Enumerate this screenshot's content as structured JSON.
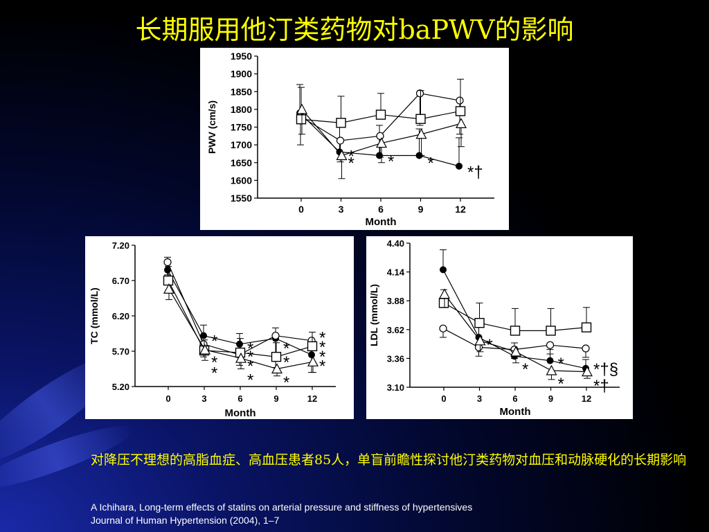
{
  "slide": {
    "title": "长期服用他汀类药物对baPWV的影响",
    "description": "对降压不理想的高脂血症、高血压患者85人，单盲前瞻性探讨他汀类药物对血压和动脉硬化的长期影响",
    "citation_line1": "A Ichihara, Long-term effects of statins on arterial pressure and stiffness of hypertensives",
    "citation_line2": "Journal of Human Hypertension (2004), 1–7"
  },
  "colors": {
    "background": "#000000",
    "title": "#ffff00",
    "citation": "#ffffff",
    "panel": "#ffffff",
    "ink": "#000000"
  },
  "chart_data": [
    {
      "type": "line",
      "xlabel": "Month",
      "ylabel": "PWV (cm/s)",
      "x": [
        0,
        3,
        6,
        9,
        12
      ],
      "ylim": [
        1550,
        1950
      ],
      "yticks": [
        "1950",
        "1900",
        "1850",
        "1800",
        "1750",
        "1700",
        "1650",
        "1600",
        "1550"
      ],
      "series": [
        {
          "marker": "filled-circle",
          "values": [
            1790,
            1680,
            1670,
            1670,
            1640
          ],
          "err": [
            80,
            70,
            85,
            75,
            80
          ]
        },
        {
          "marker": "open-circle",
          "values": [
            1780,
            1712,
            1725,
            1845,
            1825
          ],
          "err": [
            80,
            60,
            60,
            90,
            95
          ]
        },
        {
          "marker": "open-square",
          "values": [
            1772,
            1762,
            1785,
            1773,
            1795
          ],
          "err": [
            90,
            75,
            60,
            80,
            90
          ]
        },
        {
          "marker": "open-triangle",
          "values": [
            1800,
            1670,
            1705,
            1730,
            1760
          ],
          "err": [
            70,
            65,
            55,
            60,
            65
          ]
        }
      ],
      "annotations": [
        {
          "x": 3,
          "y": 1680,
          "text": "*"
        },
        {
          "x": 3,
          "y": 1660,
          "text": "*"
        },
        {
          "x": 6,
          "y": 1665,
          "text": "*"
        },
        {
          "x": 9,
          "y": 1660,
          "text": "*"
        },
        {
          "x": 12,
          "y": 1635,
          "text": "*†"
        }
      ]
    },
    {
      "type": "line",
      "xlabel": "Month",
      "ylabel": "TC (mmol/L)",
      "x": [
        0,
        3,
        6,
        9,
        12
      ],
      "ylim": [
        5.2,
        7.2
      ],
      "yticks": [
        "7.20",
        "6.70",
        "6.20",
        "5.70",
        "5.20"
      ],
      "series": [
        {
          "marker": "filled-circle",
          "values": [
            6.85,
            5.92,
            5.8,
            5.88,
            5.65
          ],
          "err": [
            0.18,
            0.15,
            0.15,
            0.15,
            0.15
          ]
        },
        {
          "marker": "open-circle",
          "values": [
            6.96,
            5.8,
            5.65,
            5.92,
            5.85
          ],
          "err": [
            0.18,
            0.18,
            0.15,
            0.45,
            0.45
          ]
        },
        {
          "marker": "open-square",
          "values": [
            6.7,
            5.71,
            5.68,
            5.62,
            5.77
          ],
          "err": [
            0.2,
            0.15,
            0.2,
            0.2,
            0.2
          ]
        },
        {
          "marker": "open-triangle",
          "values": [
            6.58,
            5.72,
            5.6,
            5.45,
            5.55
          ],
          "err": [
            0.15,
            0.15,
            0.15,
            0.1,
            0.15
          ]
        }
      ],
      "annotations": [
        {
          "x": 3,
          "y": 5.9,
          "text": "*"
        },
        {
          "x": 3,
          "y": 5.6,
          "text": "*"
        },
        {
          "x": 3,
          "y": 5.45,
          "text": "*"
        },
        {
          "x": 6,
          "y": 5.8,
          "text": "*"
        },
        {
          "x": 6,
          "y": 5.68,
          "text": "*"
        },
        {
          "x": 6,
          "y": 5.55,
          "text": "*"
        },
        {
          "x": 6,
          "y": 5.35,
          "text": "*"
        },
        {
          "x": 9,
          "y": 5.8,
          "text": "*"
        },
        {
          "x": 9,
          "y": 5.6,
          "text": "*"
        },
        {
          "x": 9,
          "y": 5.32,
          "text": "*"
        },
        {
          "x": 12,
          "y": 5.95,
          "text": "*"
        },
        {
          "x": 12,
          "y": 5.82,
          "text": "*"
        },
        {
          "x": 12,
          "y": 5.68,
          "text": "*"
        },
        {
          "x": 12,
          "y": 5.55,
          "text": "*"
        }
      ]
    },
    {
      "type": "line",
      "xlabel": "Month",
      "ylabel": "LDL (mmol/L)",
      "x": [
        0,
        3,
        6,
        9,
        12
      ],
      "ylim": [
        3.1,
        4.4
      ],
      "yticks": [
        "4.40",
        "4.14",
        "3.88",
        "3.62",
        "3.36",
        "3.10"
      ],
      "series": [
        {
          "marker": "filled-circle",
          "values": [
            4.16,
            3.55,
            3.38,
            3.34,
            3.27
          ],
          "err": [
            0.18,
            0.12,
            0.12,
            0.1,
            0.08
          ]
        },
        {
          "marker": "open-circle",
          "values": [
            3.63,
            3.46,
            3.44,
            3.48,
            3.45
          ],
          "err": [
            0.08,
            0.08,
            0.08,
            0.08,
            0.08
          ]
        },
        {
          "marker": "open-square",
          "values": [
            3.86,
            3.68,
            3.61,
            3.61,
            3.64
          ],
          "err": [
            0.12,
            0.18,
            0.2,
            0.2,
            0.18
          ]
        },
        {
          "marker": "open-triangle",
          "values": [
            3.94,
            3.52,
            3.42,
            3.25,
            3.24
          ],
          "err": [
            0.12,
            0.1,
            0.1,
            0.08,
            0.06
          ]
        }
      ],
      "annotations": [
        {
          "x": 3,
          "y": 3.52,
          "text": "*"
        },
        {
          "x": 6,
          "y": 3.3,
          "text": "*"
        },
        {
          "x": 9,
          "y": 3.35,
          "text": "*"
        },
        {
          "x": 9,
          "y": 3.17,
          "text": "*"
        },
        {
          "x": 12,
          "y": 3.3,
          "text": "*†§"
        },
        {
          "x": 12,
          "y": 3.15,
          "text": "*†"
        }
      ]
    }
  ]
}
